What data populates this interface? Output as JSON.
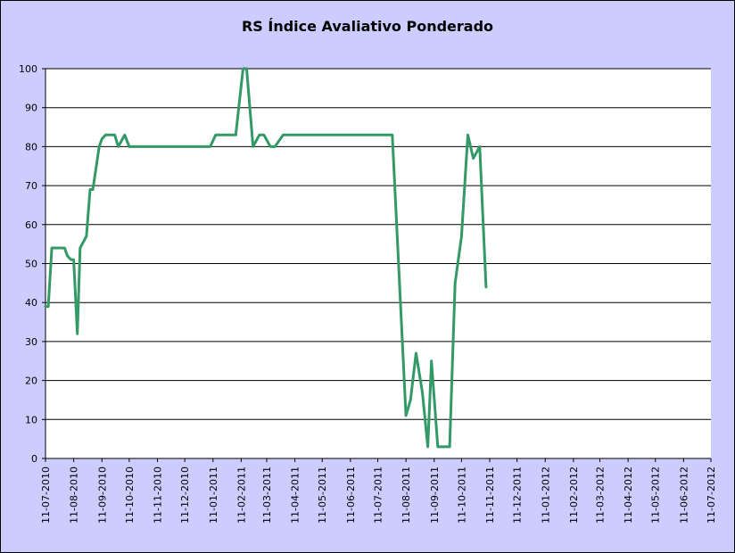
{
  "chart_data": {
    "type": "line",
    "title": "RS Índice Avaliativo Ponderado",
    "xlabel": "",
    "ylabel": "",
    "ylim": [
      0,
      100
    ],
    "yticks": [
      "0",
      "10",
      "20",
      "30",
      "40",
      "50",
      "60",
      "70",
      "80",
      "90",
      "100"
    ],
    "xticks": [
      "11-07-2010",
      "11-08-2010",
      "11-09-2010",
      "11-10-2010",
      "11-11-2010",
      "11-12-2010",
      "11-01-2011",
      "11-02-2011",
      "11-03-2011",
      "11-04-2011",
      "11-05-2011",
      "11-06-2011",
      "11-07-2011",
      "11-08-2011",
      "11-09-2011",
      "11-10-2011",
      "11-11-2011",
      "11-12-2011",
      "11-01-2012",
      "11-02-2012",
      "11-03-2012",
      "11-04-2012",
      "11-05-2012",
      "11-06-2012",
      "11-07-2012"
    ],
    "grid": true,
    "legend": "none",
    "colors": {
      "plot_bg": "#ffffff",
      "chart_bg": "#ccccff",
      "line": "#339966",
      "grid": "#000000"
    },
    "series": [
      {
        "points": [
          [
            "2010-07-11",
            39
          ],
          [
            "2010-07-14",
            39
          ],
          [
            "2010-07-18",
            54
          ],
          [
            "2010-07-25",
            54
          ],
          [
            "2010-08-01",
            54
          ],
          [
            "2010-08-04",
            52
          ],
          [
            "2010-08-08",
            51
          ],
          [
            "2010-08-11",
            51
          ],
          [
            "2010-08-15",
            32
          ],
          [
            "2010-08-18",
            54
          ],
          [
            "2010-08-25",
            57
          ],
          [
            "2010-08-29",
            69
          ],
          [
            "2010-09-01",
            69
          ],
          [
            "2010-09-08",
            80
          ],
          [
            "2010-09-11",
            82
          ],
          [
            "2010-09-15",
            83
          ],
          [
            "2010-09-22",
            83
          ],
          [
            "2010-09-25",
            83
          ],
          [
            "2010-09-29",
            80
          ],
          [
            "2010-10-06",
            83
          ],
          [
            "2010-10-11",
            80
          ],
          [
            "2010-10-20",
            80
          ],
          [
            "2010-11-03",
            80
          ],
          [
            "2010-11-17",
            80
          ],
          [
            "2010-12-01",
            80
          ],
          [
            "2010-12-15",
            80
          ],
          [
            "2010-12-29",
            80
          ],
          [
            "2011-01-08",
            80
          ],
          [
            "2011-01-14",
            83
          ],
          [
            "2011-01-25",
            83
          ],
          [
            "2011-02-05",
            83
          ],
          [
            "2011-02-13",
            100
          ],
          [
            "2011-02-17",
            100
          ],
          [
            "2011-02-24",
            80
          ],
          [
            "2011-03-03",
            83
          ],
          [
            "2011-03-08",
            83
          ],
          [
            "2011-03-15",
            80
          ],
          [
            "2011-03-20",
            80
          ],
          [
            "2011-03-29",
            83
          ],
          [
            "2011-04-11",
            83
          ],
          [
            "2011-05-11",
            83
          ],
          [
            "2011-06-11",
            83
          ],
          [
            "2011-07-11",
            83
          ],
          [
            "2011-07-27",
            83
          ],
          [
            "2011-08-11",
            11
          ],
          [
            "2011-08-16",
            15
          ],
          [
            "2011-08-22",
            27
          ],
          [
            "2011-08-29",
            17
          ],
          [
            "2011-09-04",
            3
          ],
          [
            "2011-09-08",
            25
          ],
          [
            "2011-09-15",
            3
          ],
          [
            "2011-09-22",
            3
          ],
          [
            "2011-09-28",
            3
          ],
          [
            "2011-10-04",
            45
          ],
          [
            "2011-10-11",
            57
          ],
          [
            "2011-10-18",
            83
          ],
          [
            "2011-10-24",
            77
          ],
          [
            "2011-10-31",
            80
          ],
          [
            "2011-11-07",
            44
          ]
        ]
      }
    ]
  }
}
